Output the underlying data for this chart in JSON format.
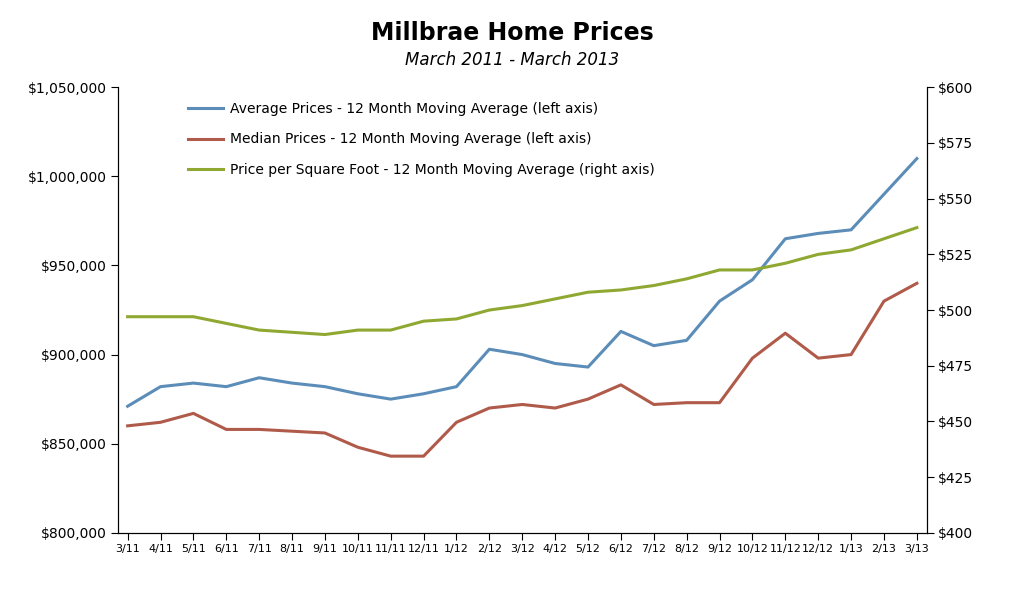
{
  "title": "Millbrae Home Prices",
  "subtitle": "March 2011 - March 2013",
  "x_labels": [
    "3/11",
    "4/11",
    "5/11",
    "6/11",
    "7/11",
    "8/11",
    "9/11",
    "10/11",
    "11/11",
    "12/11",
    "1/12",
    "2/12",
    "3/12",
    "4/12",
    "5/12",
    "6/12",
    "7/12",
    "8/12",
    "9/12",
    "10/12",
    "11/12",
    "12/12",
    "1/13",
    "2/13",
    "3/13"
  ],
  "avg_prices": [
    871000,
    882000,
    884000,
    882000,
    887000,
    884000,
    882000,
    878000,
    875000,
    878000,
    882000,
    903000,
    900000,
    895000,
    893000,
    913000,
    905000,
    908000,
    930000,
    942000,
    965000,
    968000,
    970000,
    990000,
    1010000
  ],
  "median_prices": [
    860000,
    862000,
    867000,
    858000,
    858000,
    857000,
    856000,
    848000,
    843000,
    843000,
    862000,
    870000,
    872000,
    870000,
    875000,
    883000,
    872000,
    873000,
    873000,
    898000,
    912000,
    898000,
    900000,
    930000,
    940000
  ],
  "price_sqft": [
    497,
    497,
    497,
    494,
    491,
    490,
    489,
    491,
    491,
    495,
    496,
    500,
    502,
    505,
    508,
    509,
    511,
    514,
    518,
    518,
    521,
    525,
    527,
    532,
    537
  ],
  "avg_color": "#5B8DB8",
  "median_color": "#B05A4A",
  "sqft_color": "#8FA832",
  "left_ylim": [
    800000,
    1050000
  ],
  "right_ylim": [
    400,
    600
  ],
  "left_yticks": [
    800000,
    850000,
    900000,
    950000,
    1000000,
    1050000
  ],
  "right_yticks": [
    400,
    425,
    450,
    475,
    500,
    525,
    550,
    575,
    600
  ],
  "legend_avg": "Average Prices - 12 Month Moving Average (left axis)",
  "legend_median": "Median Prices - 12 Month Moving Average (left axis)",
  "legend_sqft": "Price per Square Foot - 12 Month Moving Average (right axis)",
  "line_width": 2.2,
  "bg_color": "#FFFFFF"
}
